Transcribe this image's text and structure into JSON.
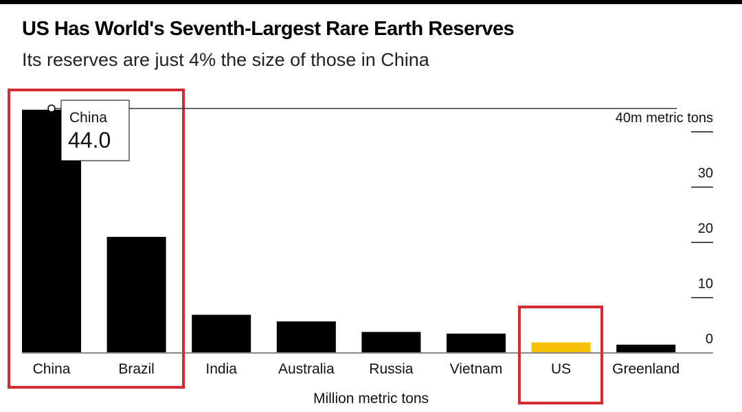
{
  "title": "US Has World's Seventh-Largest Rare Earth Reserves",
  "subtitle": "Its reserves are just 4% the size of those in China",
  "chart_data": {
    "type": "bar",
    "categories": [
      "China",
      "Brazil",
      "India",
      "Australia",
      "Russia",
      "Vietnam",
      "US",
      "Greenland"
    ],
    "values": [
      44.0,
      21.0,
      6.9,
      5.7,
      3.8,
      3.5,
      1.9,
      1.5
    ],
    "colors": [
      "#000000",
      "#000000",
      "#000000",
      "#000000",
      "#000000",
      "#000000",
      "#f5c000",
      "#000000"
    ],
    "highlight_color": "#f5c000",
    "bar_color": "#000000",
    "xlabel": "Million metric tons",
    "ylim": [
      0,
      44
    ],
    "yticks": [
      0,
      10,
      20,
      30,
      40
    ],
    "ytick_labels": [
      "0",
      "10",
      "20",
      "30",
      "40m metric tons"
    ],
    "y_axis_position": "right",
    "grid": false,
    "tooltip": {
      "label": "China",
      "value": "44.0"
    },
    "annotation_boxes": [
      {
        "categories": [
          "China",
          "Brazil"
        ],
        "color": "#d42a30"
      },
      {
        "categories": [
          "US"
        ],
        "color": "#d42a30"
      }
    ]
  }
}
